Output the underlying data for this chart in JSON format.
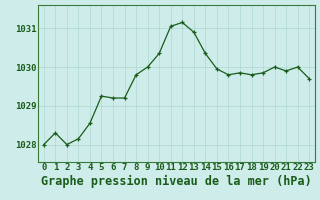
{
  "x": [
    0,
    1,
    2,
    3,
    4,
    5,
    6,
    7,
    8,
    9,
    10,
    11,
    12,
    13,
    14,
    15,
    16,
    17,
    18,
    19,
    20,
    21,
    22,
    23
  ],
  "y": [
    1028.0,
    1028.3,
    1028.0,
    1028.15,
    1028.55,
    1029.25,
    1029.2,
    1029.2,
    1029.8,
    1030.0,
    1030.35,
    1031.05,
    1031.15,
    1030.9,
    1030.35,
    1029.95,
    1029.8,
    1029.85,
    1029.8,
    1029.85,
    1030.0,
    1029.9,
    1030.0,
    1029.7
  ],
  "line_color": "#1a5c1a",
  "marker_color": "#1a5c1a",
  "bg_color": "#cdecea",
  "grid_color": "#afd8d4",
  "axis_color": "#1a5c1a",
  "border_color": "#3a7a3a",
  "xlabel": "Graphe pression niveau de la mer (hPa)",
  "xtick_labels": [
    "0",
    "1",
    "2",
    "3",
    "4",
    "5",
    "6",
    "7",
    "8",
    "9",
    "10",
    "11",
    "12",
    "13",
    "14",
    "15",
    "16",
    "17",
    "18",
    "19",
    "20",
    "21",
    "22",
    "23"
  ],
  "yticks": [
    1028,
    1029,
    1030,
    1031
  ],
  "ylim": [
    1027.55,
    1031.6
  ],
  "xlim": [
    -0.5,
    23.5
  ],
  "xlabel_fontsize": 8.5,
  "tick_fontsize": 6.5
}
